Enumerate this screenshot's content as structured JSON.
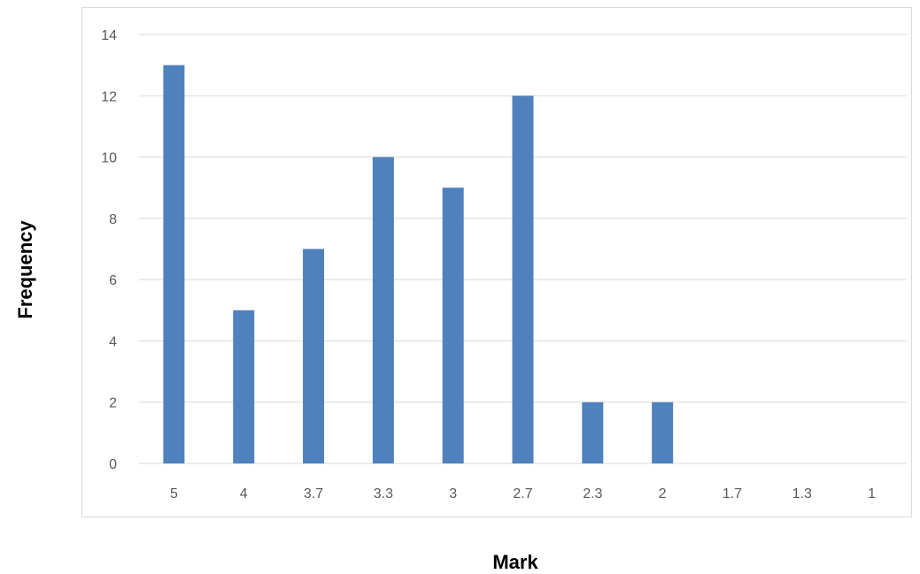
{
  "chart_data": {
    "type": "bar",
    "xlabel": "Mark",
    "ylabel": "Frequency",
    "categories": [
      "5",
      "4",
      "3.7",
      "3.3",
      "3",
      "2.7",
      "2.3",
      "2",
      "1.7",
      "1.3",
      "1"
    ],
    "series": [
      {
        "values": [
          13,
          5,
          7,
          10,
          9,
          12,
          2,
          2,
          0,
          0,
          0
        ],
        "color": "#4f81bd"
      }
    ],
    "ylim": [
      0,
      14
    ],
    "yticks": [
      0,
      2,
      4,
      6,
      8,
      10,
      12,
      14
    ],
    "grid": true,
    "legend": "none"
  }
}
